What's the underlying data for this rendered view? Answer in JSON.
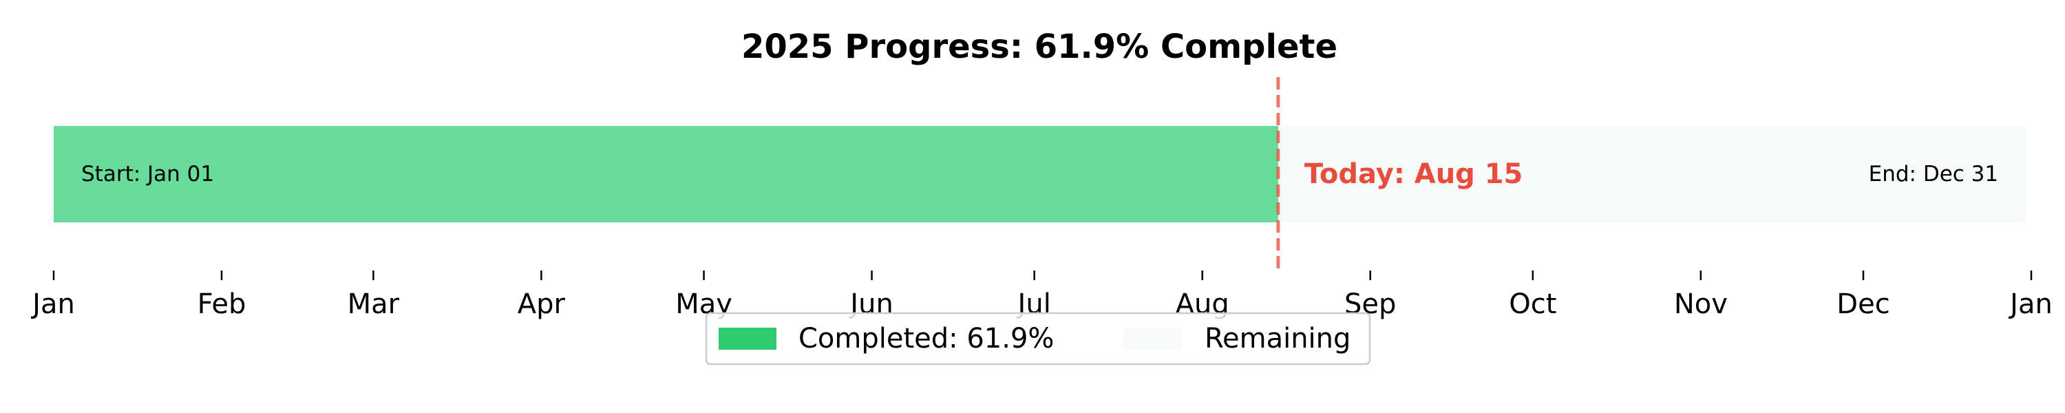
{
  "chart_data": {
    "type": "bar",
    "title": "2025 Progress: 61.9% Complete",
    "year": 2025,
    "completed_fraction": 0.619,
    "x_domain": [
      "2025-01-01",
      "2026-01-01"
    ],
    "completed_range": [
      "2025-01-01",
      "2025-08-15"
    ],
    "remaining_range": [
      "2025-08-15",
      "2025-12-31"
    ],
    "today_date": "2025-08-15",
    "tick_dates": [
      "2025-01-01",
      "2025-02-01",
      "2025-03-01",
      "2025-04-01",
      "2025-05-01",
      "2025-06-01",
      "2025-07-01",
      "2025-08-01",
      "2025-09-01",
      "2025-10-01",
      "2025-11-01",
      "2025-12-01",
      "2026-01-01"
    ],
    "tick_labels": [
      "Jan",
      "Feb",
      "Mar",
      "Apr",
      "May",
      "Jun",
      "Jul",
      "Aug",
      "Sep",
      "Oct",
      "Nov",
      "Dec",
      "Jan"
    ],
    "start_label": "Start: Jan 01",
    "end_label": "End: Dec 31",
    "today_label": "Today: Aug 15",
    "legend": {
      "placement": "lower-center",
      "entries": [
        "Completed: 61.9%",
        "Remaining"
      ]
    },
    "grid": false,
    "colors": {
      "completed": "#2ecc71",
      "remaining": "#f8f9f9",
      "today": "#e74c3c"
    }
  }
}
